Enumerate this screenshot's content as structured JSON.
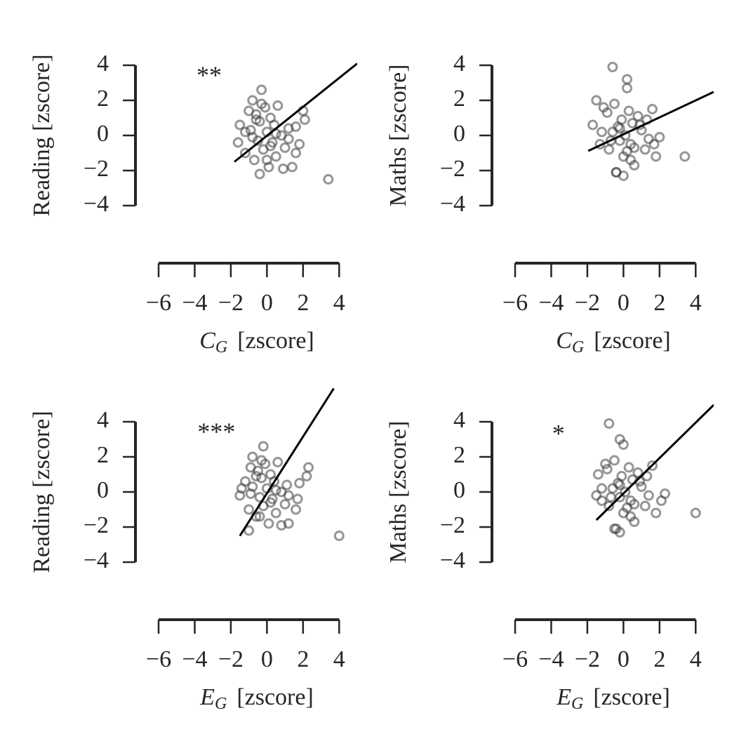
{
  "chart_data": [
    {
      "type": "scatter",
      "ylabel": "Reading [zscore]",
      "xlabel_symbol": "C",
      "xlabel_subscript": "G",
      "xlabel_unit": "[zscore]",
      "annotation": "**",
      "annotation_x": -3.2,
      "annotation_y": 3.3,
      "x": [
        -1.6,
        -1.5,
        -1.2,
        -1.0,
        -0.9,
        -0.8,
        -0.7,
        -0.6,
        -0.5,
        -0.4,
        -0.3,
        -0.2,
        -0.1,
        0,
        0.1,
        0.2,
        0.3,
        0.4,
        0.5,
        0.6,
        0.8,
        1.0,
        1.2,
        1.4,
        1.6,
        1.8,
        2.0,
        2.1,
        -0.8,
        -0.4,
        0.0,
        0.5,
        1.2,
        -1.2,
        3.4,
        -0.6,
        0.2,
        -0.3,
        1.6,
        0.9
      ],
      "y": [
        -0.4,
        0.6,
        -1.0,
        1.4,
        0.3,
        2.0,
        -1.4,
        1.2,
        -0.3,
        0.8,
        2.6,
        -0.8,
        1.6,
        0.2,
        -1.8,
        1.0,
        -0.4,
        0.6,
        -1.2,
        1.7,
        0.0,
        -0.7,
        0.4,
        -1.8,
        -1.0,
        -0.5,
        1.4,
        0.9,
        -0.1,
        -2.2,
        -1.4,
        0.1,
        -0.2,
        0.2,
        -2.5,
        0.9,
        -0.6,
        1.8,
        0.5,
        -1.9
      ],
      "fit_x": [
        -1.8,
        5
      ],
      "fit_y": [
        -1.5,
        4.1
      ],
      "color": "#404040",
      "fit_color": "#000000",
      "xlim": [
        -6,
        5
      ],
      "ylim": [
        -6,
        6
      ],
      "xticks": [
        {
          "value": -6,
          "label": "−6"
        },
        {
          "value": -4,
          "label": "−4"
        },
        {
          "value": -2,
          "label": "−2"
        },
        0,
        2,
        4
      ],
      "yticks": [
        {
          "value": -4,
          "label": "−4"
        },
        {
          "value": -2,
          "label": "−2"
        },
        0,
        2,
        4
      ]
    },
    {
      "type": "scatter",
      "ylabel": "Maths [zscore]",
      "xlabel_symbol": "C",
      "xlabel_subscript": "G",
      "xlabel_unit": "[zscore]",
      "x": [
        -1.7,
        -1.5,
        -1.3,
        -1.1,
        -0.9,
        -0.8,
        -0.6,
        -0.5,
        -0.4,
        -0.3,
        -0.2,
        -0.1,
        0,
        0.1,
        0.2,
        0.3,
        0.4,
        0.5,
        0.6,
        0.8,
        1.0,
        1.2,
        1.4,
        1.6,
        1.8,
        2.0,
        -0.6,
        0.2,
        0.2,
        3.4,
        -0.4,
        0,
        -1.2,
        0.6,
        1.3,
        -0.7,
        -0.2,
        0.9,
        1.7,
        0.4
      ],
      "y": [
        0.6,
        2.0,
        -0.5,
        1.6,
        1.3,
        -0.8,
        0.2,
        1.8,
        -2.1,
        0.5,
        -0.3,
        0.9,
        -1.2,
        0.0,
        -0.9,
        1.4,
        -0.5,
        0.7,
        -1.7,
        1.1,
        0.3,
        -0.8,
        -0.2,
        1.5,
        -1.2,
        -0.1,
        3.9,
        3.2,
        2.7,
        -1.2,
        -2.1,
        -2.3,
        0.2,
        -0.7,
        0.9,
        -0.3,
        0.4,
        0.6,
        -0.5,
        -1.4
      ],
      "fit_x": [
        -1.95,
        5
      ],
      "fit_y": [
        -0.88,
        2.48
      ],
      "color": "#404040",
      "fit_color": "#000000",
      "xlim": [
        -6,
        5
      ],
      "ylim": [
        -6,
        6
      ],
      "xticks": [
        {
          "value": -6,
          "label": "−6"
        },
        {
          "value": -4,
          "label": "−4"
        },
        {
          "value": -2,
          "label": "−2"
        },
        0,
        2,
        4
      ],
      "yticks": [
        {
          "value": -4,
          "label": "−4"
        },
        {
          "value": -2,
          "label": "−2"
        },
        0,
        2,
        4
      ]
    },
    {
      "type": "scatter",
      "ylabel": "Reading [zscore]",
      "xlabel_symbol": "E",
      "xlabel_subscript": "G",
      "xlabel_unit": "[zscore]",
      "annotation": "***",
      "annotation_x": -2.8,
      "annotation_y": 3.3,
      "x": [
        -1.5,
        -1.2,
        -1.0,
        -0.9,
        -0.8,
        -0.8,
        -0.6,
        -0.5,
        -0.4,
        -0.3,
        -0.2,
        -0.2,
        -0.1,
        0,
        0.1,
        0.2,
        0.3,
        0.4,
        0.5,
        0.6,
        0.8,
        1.0,
        1.1,
        1.2,
        1.6,
        1.8,
        2.3,
        2.2,
        -0.9,
        -1.0,
        -0.4,
        0.5,
        1.2,
        -1.4,
        4.0,
        -0.6,
        0.2,
        -0.3,
        1.7,
        0.8
      ],
      "y": [
        -0.2,
        0.6,
        -1.0,
        1.4,
        0.3,
        2.0,
        -1.4,
        1.2,
        -0.3,
        0.8,
        2.6,
        -0.8,
        1.6,
        0.2,
        -1.8,
        1.0,
        -0.4,
        0.6,
        -1.2,
        1.7,
        0.0,
        -0.7,
        0.4,
        -1.8,
        -1.0,
        0.5,
        1.4,
        0.9,
        -0.1,
        -2.2,
        -1.4,
        0.1,
        -0.2,
        0.2,
        -2.5,
        0.9,
        -0.6,
        1.8,
        -0.4,
        -1.9
      ],
      "fit_x": [
        -1.5,
        3.7
      ],
      "fit_y": [
        -2.5,
        5.9
      ],
      "color": "#404040",
      "fit_color": "#000000",
      "xlim": [
        -6,
        5
      ],
      "ylim": [
        -6,
        6
      ],
      "xticks": [
        {
          "value": -6,
          "label": "−6"
        },
        {
          "value": -4,
          "label": "−4"
        },
        {
          "value": -2,
          "label": "−2"
        },
        0,
        2,
        4
      ],
      "yticks": [
        {
          "value": -4,
          "label": "−4"
        },
        {
          "value": -2,
          "label": "−2"
        },
        0,
        2,
        4
      ]
    },
    {
      "type": "scatter",
      "ylabel": "Maths [zscore]",
      "xlabel_symbol": "E",
      "xlabel_subscript": "G",
      "xlabel_unit": "[zscore]",
      "annotation": "*",
      "annotation_x": -3.6,
      "annotation_y": 3.2,
      "x": [
        -1.5,
        -1.4,
        -1.2,
        -1.0,
        -0.9,
        -0.8,
        -0.6,
        -0.5,
        -0.4,
        -0.3,
        -0.2,
        -0.1,
        0,
        0.1,
        0.2,
        0.3,
        0.4,
        0.5,
        0.6,
        0.8,
        1.0,
        1.2,
        1.4,
        1.6,
        1.8,
        2.3,
        -0.8,
        -0.2,
        0.0,
        4.0,
        -0.5,
        -0.2,
        -1.2,
        0.6,
        1.3,
        -0.7,
        -0.2,
        0.9,
        2.1,
        0.4
      ],
      "y": [
        -0.2,
        1.0,
        -0.5,
        1.6,
        1.3,
        -0.8,
        0.2,
        1.8,
        -2.1,
        0.5,
        -0.3,
        0.9,
        -1.2,
        0.0,
        -0.9,
        1.4,
        -0.5,
        0.7,
        -1.7,
        1.1,
        0.3,
        -0.8,
        -0.2,
        1.5,
        -1.2,
        -0.1,
        3.9,
        3.0,
        2.7,
        -1.2,
        -2.1,
        -2.3,
        0.2,
        -0.7,
        0.9,
        -0.3,
        0.4,
        0.6,
        -0.5,
        -1.4
      ],
      "fit_x": [
        -1.5,
        5
      ],
      "fit_y": [
        -1.6,
        4.96
      ],
      "color": "#404040",
      "fit_color": "#000000",
      "xlim": [
        -6,
        5
      ],
      "ylim": [
        -6,
        6
      ],
      "xticks": [
        {
          "value": -6,
          "label": "−6"
        },
        {
          "value": -4,
          "label": "−4"
        },
        {
          "value": -2,
          "label": "−2"
        },
        0,
        2,
        4
      ],
      "yticks": [
        {
          "value": -4,
          "label": "−4"
        },
        {
          "value": -2,
          "label": "−2"
        },
        0,
        2,
        4
      ]
    }
  ]
}
